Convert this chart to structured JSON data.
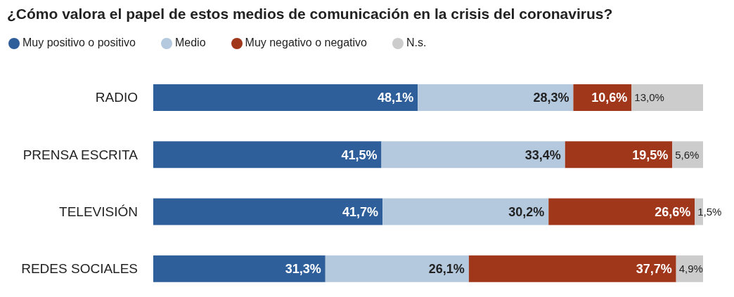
{
  "chart_data": {
    "type": "bar",
    "orientation": "horizontal",
    "stacked": true,
    "title": "¿Cómo valora el papel de estos medios de comunicación en la crisis del coronavirus?",
    "categories": [
      "RADIO",
      "PRENSA ESCRITA",
      "TELEVISIÓN",
      "REDES SOCIALES"
    ],
    "series": [
      {
        "name": "Muy positivo o positivo",
        "color": "#2e5f9a",
        "values": [
          48.1,
          41.5,
          41.7,
          31.3
        ],
        "value_labels": [
          "48,1%",
          "41,5%",
          "41,7%",
          "31,3%"
        ]
      },
      {
        "name": "Medio",
        "color": "#b4c8de",
        "values": [
          28.3,
          33.4,
          30.2,
          26.1
        ],
        "value_labels": [
          "28,3%",
          "33,4%",
          "30,2%",
          "26,1%"
        ]
      },
      {
        "name": "Muy negativo o negativo",
        "color": "#a0361a",
        "values": [
          10.6,
          19.5,
          26.6,
          37.7
        ],
        "value_labels": [
          "10,6%",
          "19,5%",
          "26,6%",
          "37,7%"
        ]
      },
      {
        "name": "N.s.",
        "color": "#cccccc",
        "values": [
          13.0,
          5.6,
          1.5,
          4.9
        ],
        "value_labels": [
          "13,0%",
          "5,6%",
          "1,5%",
          "4,9%"
        ]
      }
    ],
    "xlim": [
      0,
      100
    ],
    "tick_labels": "y",
    "legend": "top left"
  }
}
